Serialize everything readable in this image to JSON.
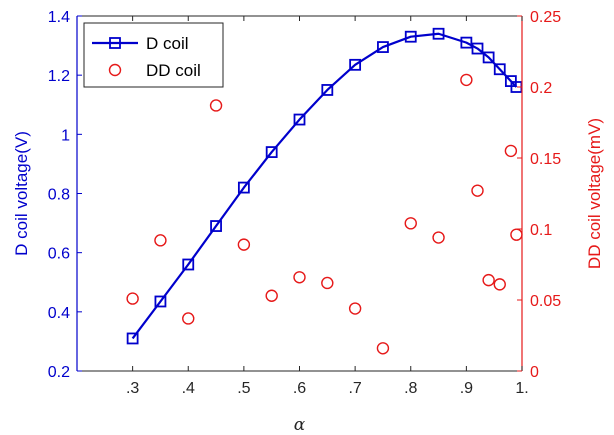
{
  "chart_data": {
    "type": "line",
    "xlabel": "α",
    "ylabel_left": "D coil voltage(V)",
    "ylabel_right": "DD coil voltage(mV)",
    "xlim": [
      0.2,
      1.0
    ],
    "ylim_left": [
      0.2,
      1.4
    ],
    "ylim_right": [
      0,
      0.25
    ],
    "x_ticks": [
      ".3",
      ".4",
      ".5",
      ".6",
      ".7",
      ".8",
      ".9",
      "1."
    ],
    "x_tick_values": [
      0.3,
      0.4,
      0.5,
      0.6,
      0.7,
      0.8,
      0.9,
      1.0
    ],
    "y_left_ticks": [
      "0.2",
      "0.4",
      "0.6",
      "0.8",
      "1",
      "1.2",
      "1.4"
    ],
    "y_left_tick_values": [
      0.2,
      0.4,
      0.6,
      0.8,
      1.0,
      1.2,
      1.4
    ],
    "y_right_ticks": [
      "0",
      "0.05",
      "0.1",
      "0.15",
      "0.2",
      "0.25"
    ],
    "y_right_tick_values": [
      0,
      0.05,
      0.1,
      0.15,
      0.2,
      0.25
    ],
    "legend_position": "top-left",
    "grid": false,
    "colors": {
      "left": "#0000cc",
      "right": "#e61919"
    },
    "series": [
      {
        "name": "D coil",
        "axis": "left",
        "marker": "square",
        "style": "line",
        "x": [
          0.3,
          0.35,
          0.4,
          0.45,
          0.5,
          0.55,
          0.6,
          0.65,
          0.7,
          0.75,
          0.8,
          0.85,
          0.9,
          0.92,
          0.94,
          0.96,
          0.98,
          0.99
        ],
        "y": [
          0.31,
          0.435,
          0.56,
          0.69,
          0.82,
          0.94,
          1.05,
          1.15,
          1.235,
          1.295,
          1.33,
          1.34,
          1.31,
          1.29,
          1.26,
          1.22,
          1.18,
          1.16
        ]
      },
      {
        "name": "DD coil",
        "axis": "right",
        "marker": "circle",
        "style": "markers",
        "x": [
          0.3,
          0.35,
          0.4,
          0.45,
          0.5,
          0.55,
          0.6,
          0.65,
          0.7,
          0.75,
          0.8,
          0.85,
          0.9,
          0.92,
          0.94,
          0.96,
          0.98,
          0.99
        ],
        "y": [
          0.051,
          0.092,
          0.037,
          0.187,
          0.089,
          0.053,
          0.066,
          0.062,
          0.044,
          0.016,
          0.104,
          0.094,
          0.205,
          0.127,
          0.064,
          0.061,
          0.155,
          0.096
        ]
      }
    ]
  }
}
